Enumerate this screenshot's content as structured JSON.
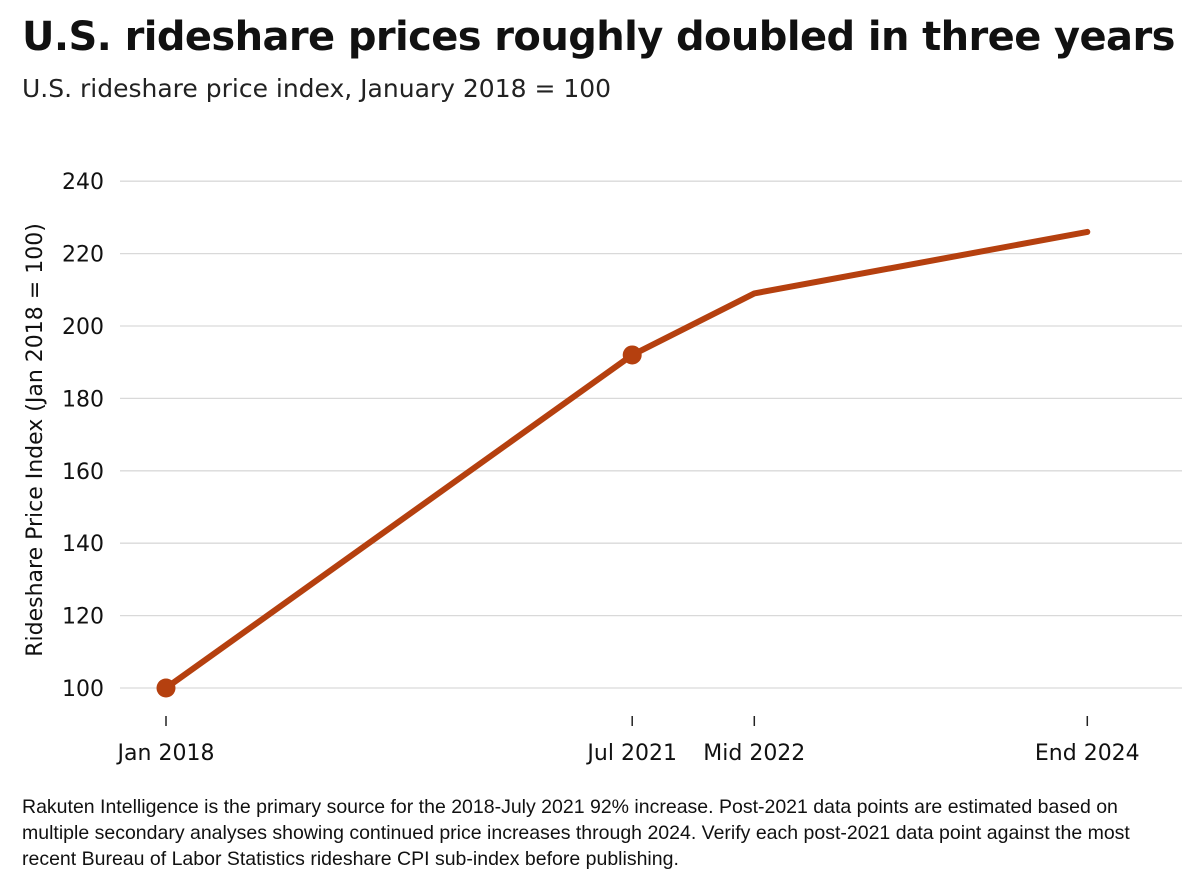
{
  "chart_data": {
    "type": "line",
    "title": "U.S. rideshare prices roughly doubled in three years",
    "subtitle": "U.S. rideshare price index, January 2018 = 100",
    "xlabel": "",
    "ylabel": "Rideshare Price Index (Jan 2018 = 100)",
    "ylim": [
      95,
      245
    ],
    "yticks": [
      100,
      120,
      140,
      160,
      180,
      200,
      220,
      240
    ],
    "x_axis_type": "date",
    "grid": true,
    "line_color": "#b5400f",
    "grid_color": "#d9d9d9",
    "series": [
      {
        "values": [
          {
            "x": "2018-01",
            "label": "Jan 2018",
            "y": 100,
            "marker": true
          },
          {
            "x": "2021-07",
            "label": "Jul 2021",
            "y": 192,
            "marker": true
          },
          {
            "x": "2022-06",
            "label": "Mid 2022",
            "y": 209,
            "marker": false
          },
          {
            "x": "2024-12",
            "label": "End 2024",
            "y": 226,
            "marker": false
          }
        ]
      }
    ]
  },
  "footnote": "Rakuten Intelligence is the primary source for the 2018-July 2021 92% increase. Post-2021 data points are estimated based on multiple secondary analyses showing continued price increases through 2024. Verify each post-2021 data point against the most recent Bureau of Labor Statistics rideshare CPI sub-index before publishing."
}
